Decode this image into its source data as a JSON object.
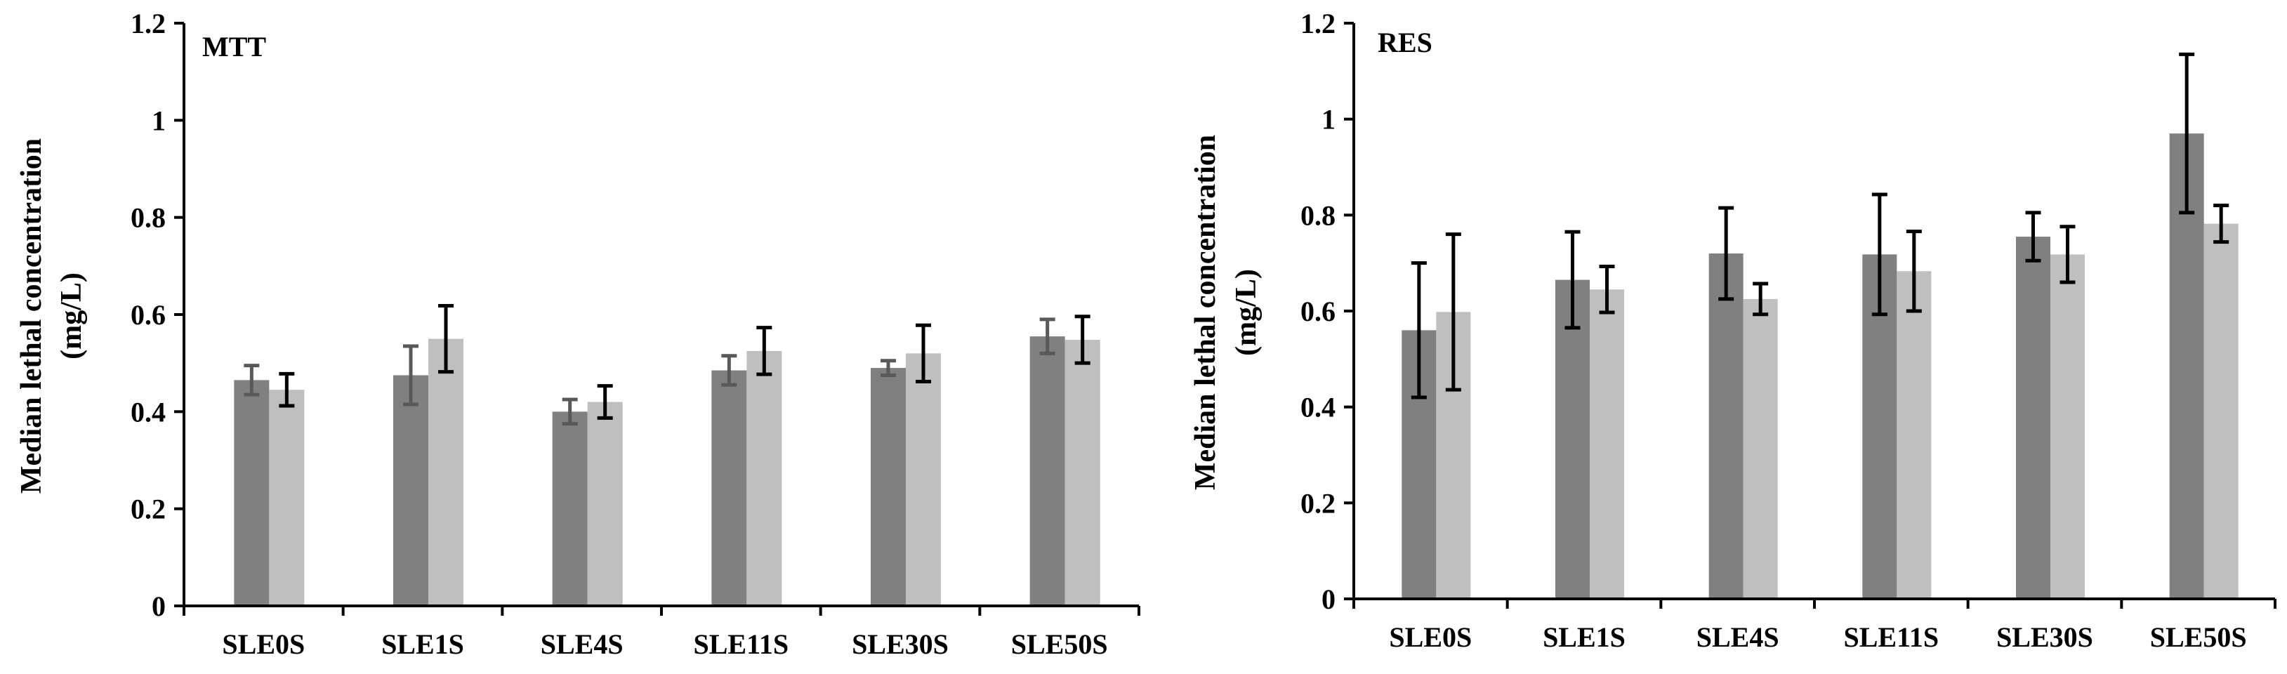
{
  "chart_data": [
    {
      "type": "bar",
      "title": "MTT",
      "ylabel": "Median lethal concentration",
      "ylabel_unit": "(mg/L)",
      "xlabel": "",
      "ylim": [
        0,
        1.2
      ],
      "yticks": [
        "0",
        "0.2",
        "0.4",
        "0.6",
        "0.8",
        "1",
        "1.2"
      ],
      "grid": false,
      "legend": "none",
      "categories": [
        "SLE0S",
        "SLE1S",
        "SLE4S",
        "SLE11S",
        "SLE30S",
        "SLE50S"
      ],
      "series": [
        {
          "name": "dark gray",
          "color": "#808080",
          "errorbar_color": "#595959",
          "values": [
            0.465,
            0.475,
            0.4,
            0.485,
            0.49,
            0.555
          ],
          "errors": [
            0.03,
            0.06,
            0.025,
            0.03,
            0.015,
            0.035
          ]
        },
        {
          "name": "light gray",
          "color": "#bfbfbf",
          "errorbar_color": "#000000",
          "values": [
            0.445,
            0.55,
            0.42,
            0.525,
            0.52,
            0.548
          ],
          "errors": [
            0.033,
            0.068,
            0.033,
            0.048,
            0.058,
            0.048
          ]
        }
      ]
    },
    {
      "type": "bar",
      "title": "RES",
      "ylabel": "Median lethal concentration",
      "ylabel_unit": "(mg/L)",
      "xlabel": "",
      "ylim": [
        0,
        1.2
      ],
      "yticks": [
        "0",
        "0.2",
        "0.4",
        "0.6",
        "0.8",
        "1",
        "1.2"
      ],
      "grid": false,
      "legend": "none",
      "categories": [
        "SLE0S",
        "SLE1S",
        "SLE4S",
        "SLE11S",
        "SLE30S",
        "SLE50S"
      ],
      "series": [
        {
          "name": "dark gray",
          "color": "#808080",
          "errorbar_color": "#000000",
          "values": [
            0.56,
            0.665,
            0.72,
            0.718,
            0.755,
            0.97
          ],
          "errors": [
            0.14,
            0.1,
            0.095,
            0.125,
            0.05,
            0.165
          ]
        },
        {
          "name": "light gray",
          "color": "#bfbfbf",
          "errorbar_color": "#000000",
          "values": [
            0.598,
            0.645,
            0.625,
            0.683,
            0.718,
            0.782
          ],
          "errors": [
            0.162,
            0.048,
            0.032,
            0.083,
            0.058,
            0.038
          ]
        }
      ]
    }
  ]
}
